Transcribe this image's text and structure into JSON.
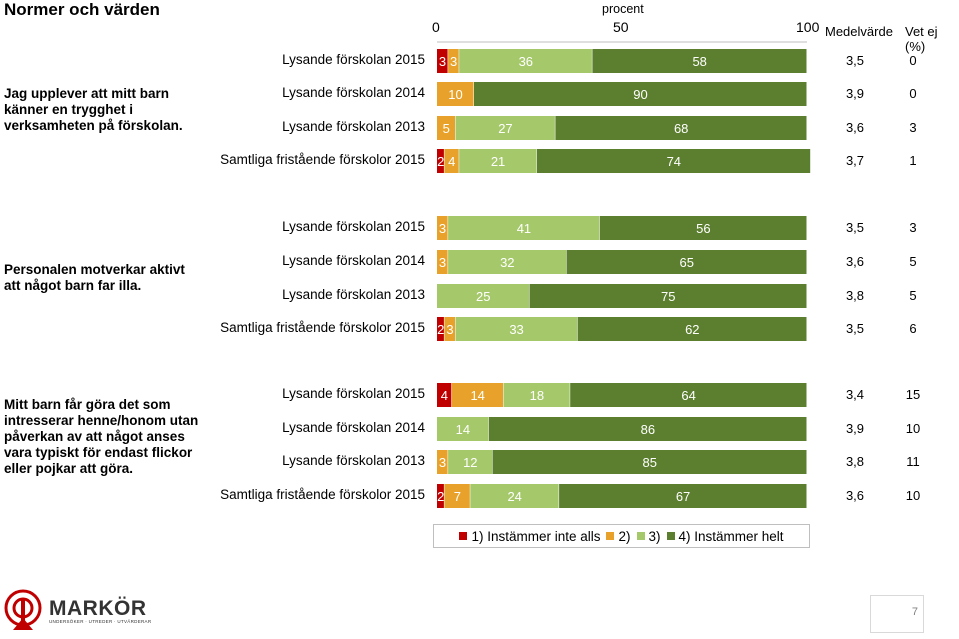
{
  "page": {
    "title": "Normer och värden",
    "page_number": "7",
    "logo": {
      "name": "MARKÖR",
      "tagline": "UNDERSÖKER · UTREDER · UTVÄRDERAR"
    }
  },
  "colors": {
    "c1": "#c00000",
    "c2": "#e8a22b",
    "c3": "#a5c96a",
    "c4": "#5b7f2e"
  },
  "chart_data": {
    "type": "bar",
    "stacked": true,
    "orientation": "horizontal",
    "axis": {
      "title": "procent",
      "ticks": [
        "0",
        "50",
        "100"
      ],
      "xlim": [
        0,
        100
      ]
    },
    "column_headers": {
      "mean": "Medelvärde",
      "dont_know": "Vet ej (%)"
    },
    "legend": [
      {
        "label": "1) Instämmer inte alls",
        "color": "#c00000"
      },
      {
        "label": "2)",
        "color": "#e8a22b"
      },
      {
        "label": "3)",
        "color": "#a5c96a"
      },
      {
        "label": "4) Instämmer helt",
        "color": "#5b7f2e"
      }
    ],
    "groups": [
      {
        "question": "Jag upplever att mitt barn känner en trygghet i verksamheten på förskolan.",
        "rows": [
          {
            "label": "Lysande förskolan 2015",
            "values": [
              3,
              3,
              36,
              58
            ],
            "mean": "3,5",
            "dont_know": "0"
          },
          {
            "label": "Lysande förskolan 2014",
            "values": [
              0,
              10,
              0,
              90
            ],
            "value_labels": [
              "0",
              "10",
              "",
              "90"
            ],
            "mean": "3,9",
            "dont_know": "0"
          },
          {
            "label": "Lysande förskolan 2013",
            "values": [
              0,
              5,
              27,
              68
            ],
            "mean": "3,6",
            "dont_know": "3"
          },
          {
            "label": "Samtliga fristående förskolor 2015",
            "values": [
              2,
              4,
              21,
              74
            ],
            "mean": "3,7",
            "dont_know": "1"
          }
        ]
      },
      {
        "question": "Personalen motverkar aktivt att något barn far illa.",
        "rows": [
          {
            "label": "Lysande förskolan 2015",
            "values": [
              0,
              3,
              41,
              56
            ],
            "value_labels": [
              "0",
              "3",
              "41",
              "56"
            ],
            "mean": "3,5",
            "dont_know": "3"
          },
          {
            "label": "Lysande förskolan 2014",
            "values": [
              0,
              3,
              32,
              65
            ],
            "value_labels": [
              "0",
              "3",
              "32",
              "65"
            ],
            "mean": "3,6",
            "dont_know": "5"
          },
          {
            "label": "Lysande förskolan 2013",
            "values": [
              0,
              0,
              25,
              75
            ],
            "value_labels": [
              "0",
              "",
              "25",
              "75"
            ],
            "mean": "3,8",
            "dont_know": "5"
          },
          {
            "label": "Samtliga fristående förskolor 2015",
            "values": [
              2,
              3,
              33,
              62
            ],
            "mean": "3,5",
            "dont_know": "6"
          }
        ]
      },
      {
        "question": "Mitt barn får göra det som intresserar henne/honom utan påverkan av att något anses vara typiskt för endast flickor eller pojkar att göra.",
        "rows": [
          {
            "label": "Lysande förskolan 2015",
            "values": [
              4,
              14,
              18,
              64
            ],
            "mean": "3,4",
            "dont_know": "15"
          },
          {
            "label": "Lysande förskolan 2014",
            "values": [
              0,
              0,
              14,
              86
            ],
            "value_labels": [
              "0",
              "",
              "14",
              "86"
            ],
            "mean": "3,9",
            "dont_know": "10"
          },
          {
            "label": "Lysande förskolan 2013",
            "values": [
              0,
              3,
              12,
              85
            ],
            "value_labels": [
              "0",
              "3",
              "12",
              "85"
            ],
            "mean": "3,8",
            "dont_know": "11"
          },
          {
            "label": "Samtliga fristående förskolor 2015",
            "values": [
              2,
              7,
              24,
              67
            ],
            "mean": "3,6",
            "dont_know": "10"
          }
        ]
      }
    ]
  }
}
